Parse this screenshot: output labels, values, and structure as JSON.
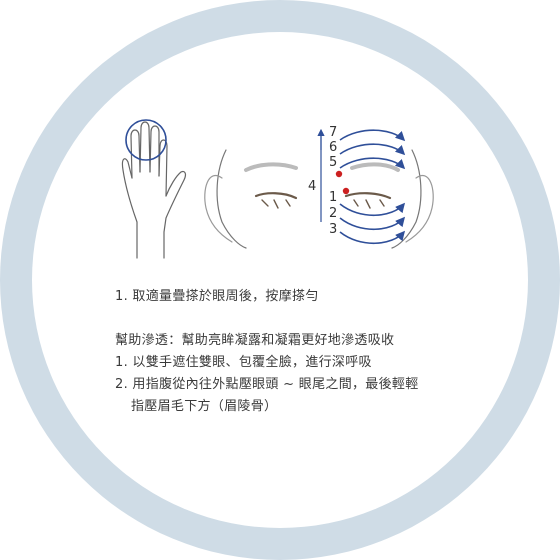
{
  "colors": {
    "ring": "#cfdce6",
    "arrows": "#2f4f99",
    "points": "#cc2020",
    "lines": "#555555"
  },
  "icons": [
    "hand-icon",
    "face-icon"
  ],
  "diagram": {
    "bracket_label": "4",
    "upper_labels": [
      "7",
      "6",
      "5"
    ],
    "lower_labels": [
      "1",
      "2",
      "3"
    ]
  },
  "instructions": {
    "step_main": "1. 取適量疊搽於眼周後，按摩搽勻",
    "section_title": "幫助滲透：幫助亮眸凝露和凝霜更好地滲透吸收",
    "steps": [
      "1. 以雙手遮住雙眼、包覆全臉，進行深呼吸",
      "2. 用指腹從內往外點壓眼頭 ~ 眼尾之間，最後輕輕",
      "指壓眉毛下方（眉陵骨）"
    ]
  }
}
